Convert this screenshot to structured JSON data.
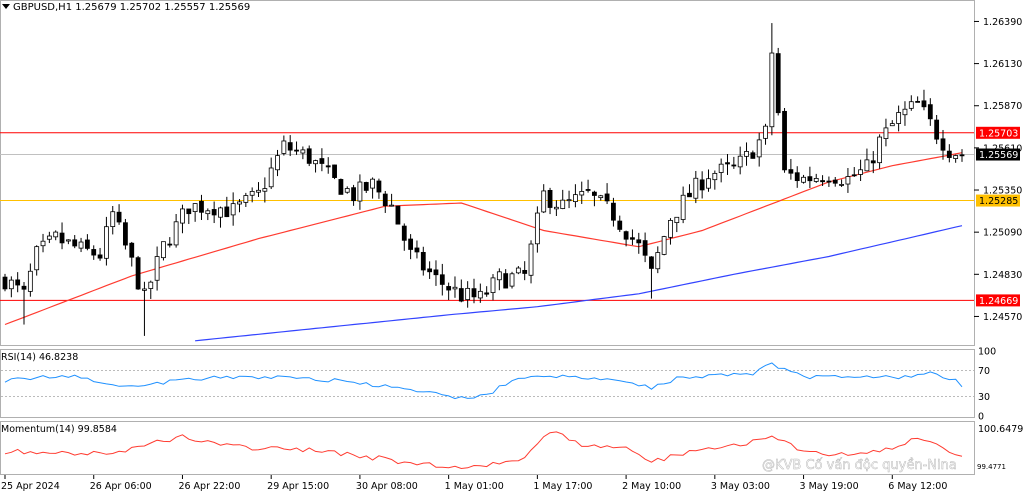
{
  "chart_data": {
    "type": "candlestick",
    "symbol_header": "GBPUSD,H1  1.25679 1.25702 1.25557 1.25569",
    "price_axis": {
      "ylim": [
        1.244,
        1.2651
      ],
      "tick_labels": [
        "1.26390",
        "1.26130",
        "1.25870",
        "1.25610",
        "1.25350",
        "1.25090",
        "1.24830",
        "1.24570"
      ],
      "tick_values": [
        1.2639,
        1.2613,
        1.2587,
        1.2561,
        1.2535,
        1.2509,
        1.2483,
        1.2457
      ]
    },
    "time_axis": {
      "labels": [
        "25 Apr 2024",
        "26 Apr 06:00",
        "26 Apr 22:00",
        "29 Apr 15:00",
        "30 Apr 08:00",
        "1 May 01:00",
        "1 May 17:00",
        "2 May 10:00",
        "3 May 03:00",
        "3 May 19:00",
        "6 May 12:00"
      ],
      "label_bar_index": [
        0,
        14,
        28,
        42,
        56,
        70,
        84,
        98,
        112,
        126,
        140
      ]
    },
    "bar_count": 152,
    "horizontal_lines": [
      {
        "price": 1.25703,
        "label": "1.25703",
        "color": "#ff0000"
      },
      {
        "price": 1.25285,
        "label": "1.25285",
        "color": "#ffc000"
      },
      {
        "price": 1.24669,
        "label": "1.24669",
        "color": "#ff0000"
      }
    ],
    "current_price": {
      "price": 1.25569,
      "label": "1.25569",
      "color": "#000000"
    },
    "ohlc_anchors": [
      [
        0,
        1.248
      ],
      [
        3,
        1.247
      ],
      [
        5,
        1.2495
      ],
      [
        8,
        1.2505
      ],
      [
        12,
        1.2498
      ],
      [
        15,
        1.2495
      ],
      [
        17,
        1.252
      ],
      [
        20,
        1.249
      ],
      [
        22,
        1.2468
      ],
      [
        25,
        1.25
      ],
      [
        29,
        1.2525
      ],
      [
        33,
        1.2525
      ],
      [
        36,
        1.2522
      ],
      [
        40,
        1.2532
      ],
      [
        44,
        1.2562
      ],
      [
        48,
        1.2555
      ],
      [
        52,
        1.254
      ],
      [
        55,
        1.2532
      ],
      [
        58,
        1.2538
      ],
      [
        61,
        1.2525
      ],
      [
        64,
        1.2495
      ],
      [
        68,
        1.248
      ],
      [
        72,
        1.247
      ],
      [
        75,
        1.2468
      ],
      [
        78,
        1.248
      ],
      [
        82,
        1.2482
      ],
      [
        85,
        1.2532
      ],
      [
        88,
        1.2525
      ],
      [
        92,
        1.2532
      ],
      [
        96,
        1.252
      ],
      [
        100,
        1.25
      ],
      [
        102,
        1.2483
      ],
      [
        105,
        1.2518
      ],
      [
        108,
        1.2532
      ],
      [
        111,
        1.2545
      ],
      [
        115,
        1.2548
      ],
      [
        117,
        1.2555
      ],
      [
        120,
        1.257
      ],
      [
        121,
        1.262
      ],
      [
        123,
        1.2545
      ],
      [
        126,
        1.2542
      ],
      [
        130,
        1.2545
      ],
      [
        133,
        1.2542
      ],
      [
        136,
        1.2548
      ],
      [
        138,
        1.2565
      ],
      [
        141,
        1.258
      ],
      [
        144,
        1.2588
      ],
      [
        147,
        1.257
      ],
      [
        149,
        1.256
      ],
      [
        151,
        1.2557
      ]
    ],
    "ma_fast": {
      "color": "#ff3b30",
      "points": [
        [
          0,
          1.2452
        ],
        [
          20,
          1.2482
        ],
        [
          40,
          1.2505
        ],
        [
          60,
          1.2525
        ],
        [
          72,
          1.2527
        ],
        [
          85,
          1.251
        ],
        [
          100,
          1.25
        ],
        [
          110,
          1.251
        ],
        [
          120,
          1.2525
        ],
        [
          130,
          1.254
        ],
        [
          140,
          1.255
        ],
        [
          151,
          1.2558
        ]
      ]
    },
    "ma_slow": {
      "color": "#3344ff",
      "points": [
        [
          30,
          1.2442
        ],
        [
          50,
          1.245
        ],
        [
          70,
          1.2458
        ],
        [
          84,
          1.2463
        ],
        [
          100,
          1.2471
        ],
        [
          115,
          1.2483
        ],
        [
          130,
          1.2494
        ],
        [
          151,
          1.2513
        ]
      ]
    },
    "rsi": {
      "label": "RSI(14) 46.8238",
      "levels": {
        "top": "100",
        "upper": "70",
        "lower": "30",
        "bottom": "0"
      },
      "color": "#1e90ff",
      "anchors": [
        [
          0,
          55
        ],
        [
          10,
          62
        ],
        [
          20,
          45
        ],
        [
          30,
          58
        ],
        [
          45,
          60
        ],
        [
          55,
          52
        ],
        [
          65,
          38
        ],
        [
          72,
          28
        ],
        [
          76,
          32
        ],
        [
          80,
          55
        ],
        [
          84,
          63
        ],
        [
          88,
          60
        ],
        [
          96,
          55
        ],
        [
          102,
          44
        ],
        [
          106,
          58
        ],
        [
          112,
          63
        ],
        [
          118,
          66
        ],
        [
          121,
          80
        ],
        [
          126,
          60
        ],
        [
          135,
          62
        ],
        [
          141,
          60
        ],
        [
          146,
          65
        ],
        [
          150,
          55
        ],
        [
          151,
          46.8
        ]
      ]
    },
    "momentum": {
      "label": "Momentum(14) 99.8584",
      "axis_top_label": "100.6479",
      "axis_bottom_label": "99.4771",
      "color": "#ff3b30",
      "anchors": [
        [
          0,
          100.0
        ],
        [
          10,
          99.95
        ],
        [
          18,
          99.98
        ],
        [
          28,
          100.35
        ],
        [
          36,
          100.1
        ],
        [
          44,
          100.05
        ],
        [
          50,
          100.0
        ],
        [
          56,
          99.9
        ],
        [
          63,
          99.75
        ],
        [
          70,
          99.62
        ],
        [
          76,
          99.7
        ],
        [
          82,
          99.85
        ],
        [
          86,
          100.45
        ],
        [
          92,
          100.1
        ],
        [
          98,
          100.05
        ],
        [
          102,
          99.75
        ],
        [
          108,
          100.0
        ],
        [
          116,
          100.15
        ],
        [
          121,
          100.4
        ],
        [
          126,
          99.95
        ],
        [
          134,
          99.9
        ],
        [
          140,
          100.05
        ],
        [
          144,
          100.3
        ],
        [
          148,
          100.1
        ],
        [
          151,
          99.86
        ]
      ]
    },
    "watermark": "@KVB Cố vấn độc quyền-Nina"
  }
}
